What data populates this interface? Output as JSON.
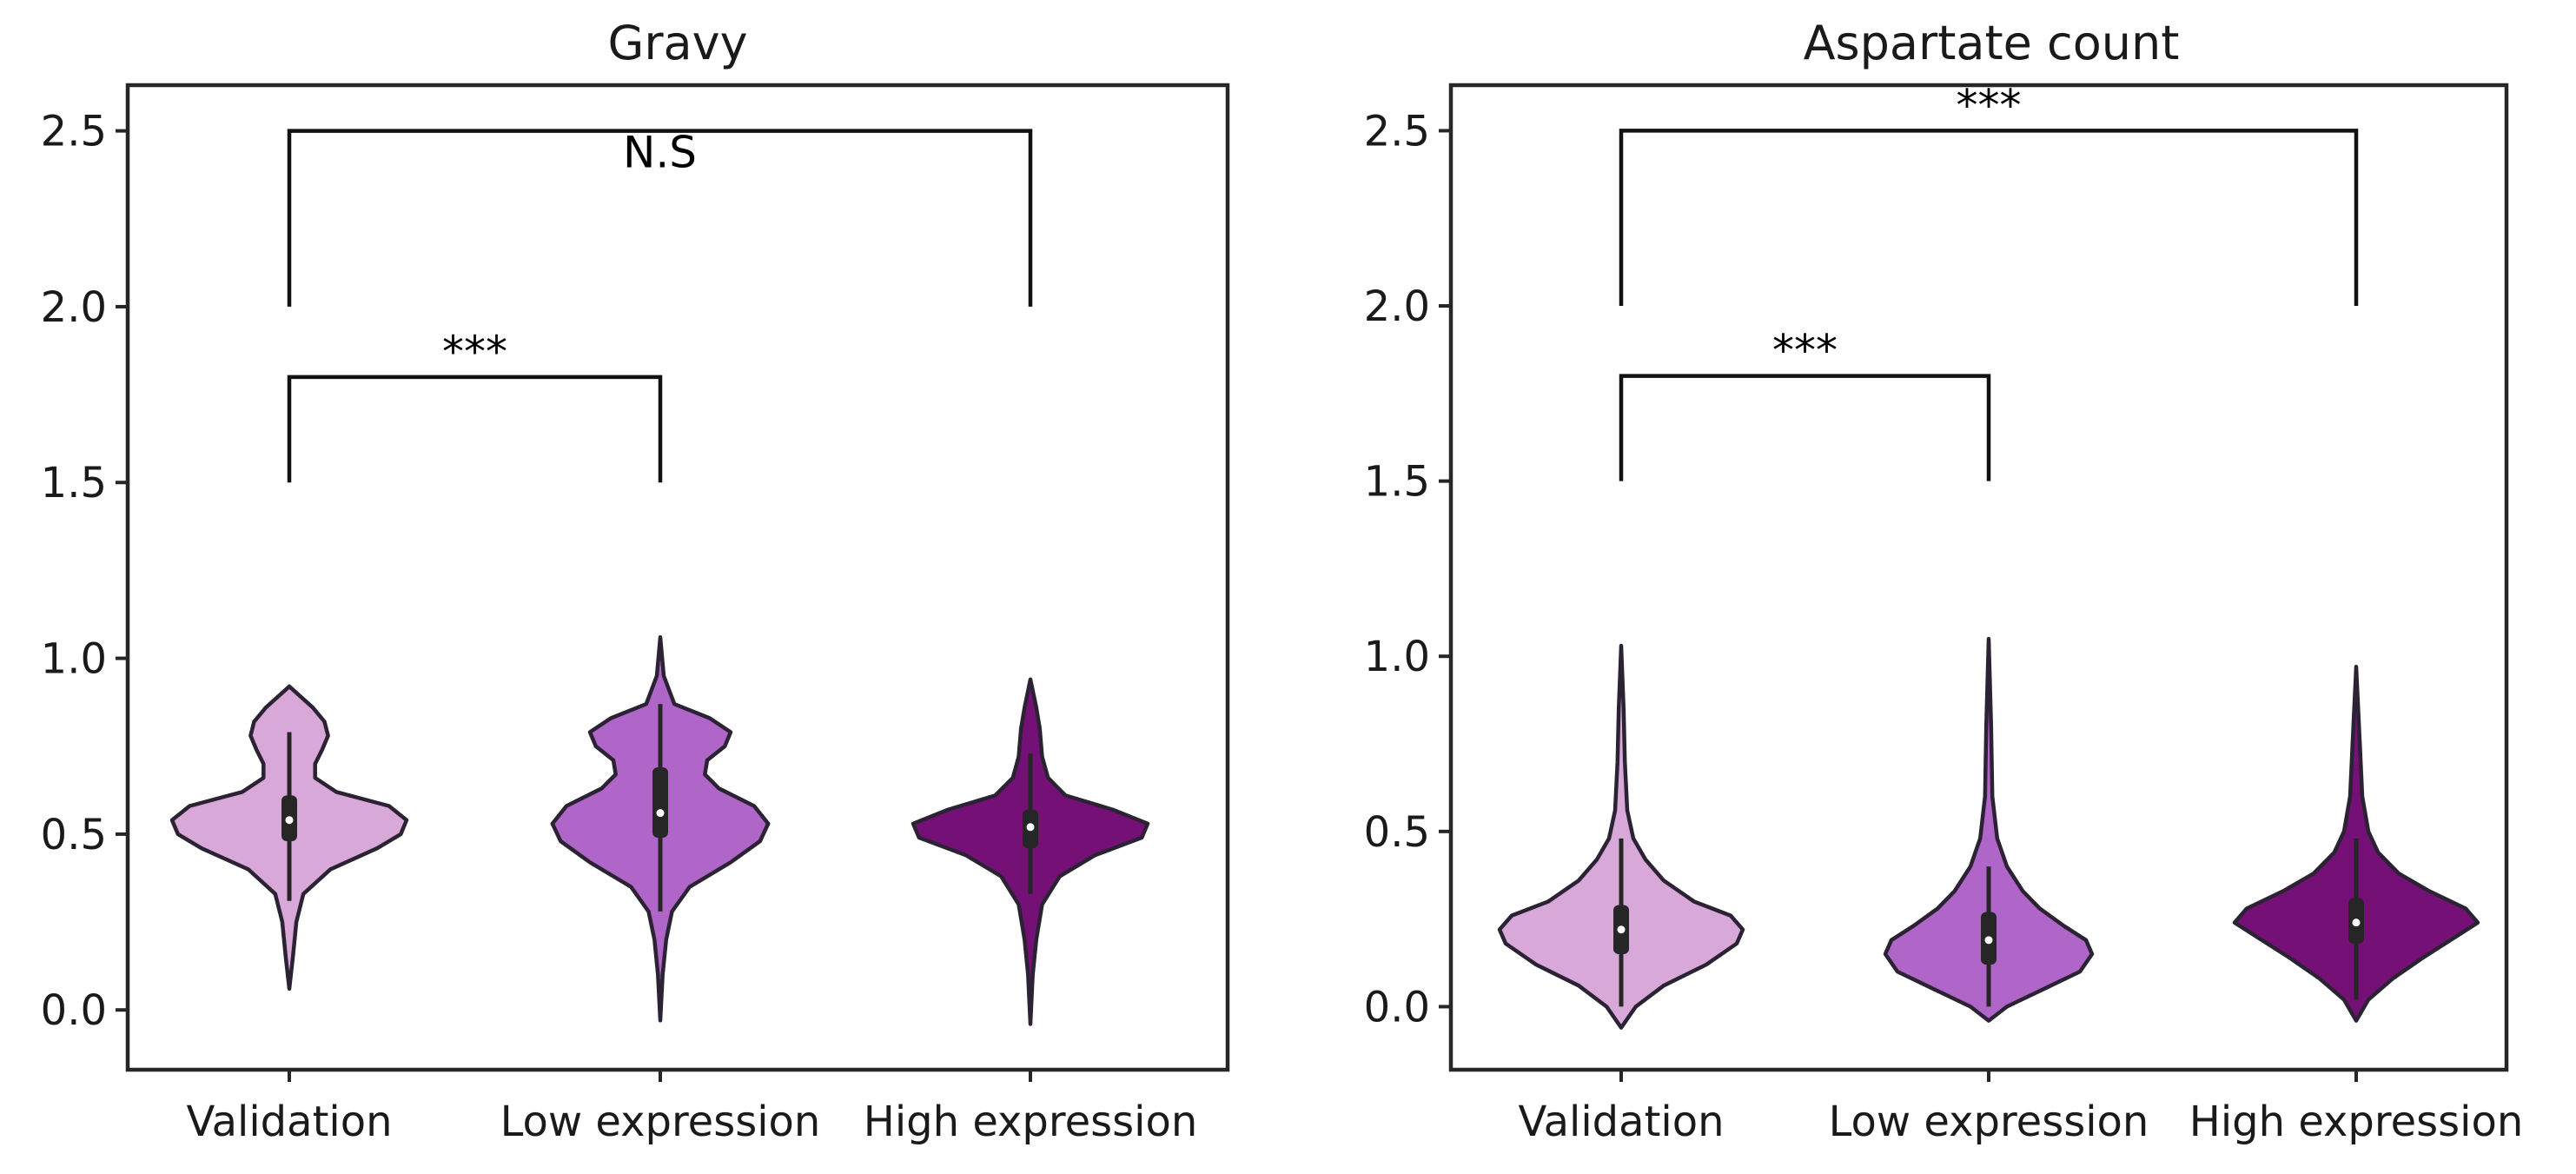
{
  "chart_data": [
    {
      "type": "violin",
      "title": "Gravy",
      "categories": [
        "Validation",
        "Low expression",
        "High expression"
      ],
      "colors": [
        "#d8a8d8",
        "#b066c8",
        "#751077"
      ],
      "ylim": [
        -0.17,
        2.63
      ],
      "yticks": [
        0.0,
        0.5,
        1.0,
        1.5,
        2.0,
        2.5
      ],
      "ytick_labels": [
        "0.0",
        "0.5",
        "1.0",
        "1.5",
        "2.0",
        "2.5"
      ],
      "violins": [
        {
          "min": 0.06,
          "max": 0.92,
          "q1": 0.48,
          "median": 0.54,
          "q3": 0.61,
          "whisker_low": 0.31,
          "whisker_high": 0.79,
          "profile": [
            [
              0.06,
              0.0
            ],
            [
              0.15,
              0.03
            ],
            [
              0.25,
              0.06
            ],
            [
              0.33,
              0.12
            ],
            [
              0.4,
              0.35
            ],
            [
              0.46,
              0.75
            ],
            [
              0.5,
              0.95
            ],
            [
              0.54,
              1.0
            ],
            [
              0.58,
              0.85
            ],
            [
              0.62,
              0.4
            ],
            [
              0.66,
              0.22
            ],
            [
              0.7,
              0.22
            ],
            [
              0.74,
              0.28
            ],
            [
              0.78,
              0.33
            ],
            [
              0.82,
              0.3
            ],
            [
              0.86,
              0.2
            ],
            [
              0.92,
              0.0
            ]
          ]
        },
        {
          "min": -0.03,
          "max": 1.06,
          "q1": 0.49,
          "median": 0.56,
          "q3": 0.69,
          "whisker_low": 0.28,
          "whisker_high": 0.87,
          "profile": [
            [
              -0.03,
              0.0
            ],
            [
              0.1,
              0.02
            ],
            [
              0.2,
              0.05
            ],
            [
              0.28,
              0.1
            ],
            [
              0.35,
              0.25
            ],
            [
              0.42,
              0.6
            ],
            [
              0.48,
              0.85
            ],
            [
              0.53,
              0.92
            ],
            [
              0.58,
              0.8
            ],
            [
              0.63,
              0.5
            ],
            [
              0.67,
              0.38
            ],
            [
              0.71,
              0.4
            ],
            [
              0.75,
              0.55
            ],
            [
              0.79,
              0.6
            ],
            [
              0.83,
              0.42
            ],
            [
              0.87,
              0.12
            ],
            [
              0.95,
              0.03
            ],
            [
              1.06,
              0.0
            ]
          ]
        },
        {
          "min": -0.04,
          "max": 0.94,
          "q1": 0.46,
          "median": 0.52,
          "q3": 0.57,
          "whisker_low": 0.33,
          "whisker_high": 0.73,
          "profile": [
            [
              -0.04,
              0.0
            ],
            [
              0.1,
              0.02
            ],
            [
              0.2,
              0.05
            ],
            [
              0.3,
              0.1
            ],
            [
              0.38,
              0.25
            ],
            [
              0.44,
              0.55
            ],
            [
              0.49,
              0.95
            ],
            [
              0.53,
              1.0
            ],
            [
              0.57,
              0.7
            ],
            [
              0.61,
              0.3
            ],
            [
              0.66,
              0.15
            ],
            [
              0.72,
              0.1
            ],
            [
              0.8,
              0.08
            ],
            [
              0.86,
              0.05
            ],
            [
              0.94,
              0.0
            ]
          ]
        }
      ],
      "annotations": [
        {
          "from": 0,
          "to": 1,
          "y": 1.8,
          "leg_bottom": 1.5,
          "label": "***"
        },
        {
          "from": 0,
          "to": 2,
          "y": 2.5,
          "leg_bottom": 2.0,
          "label": "N.S"
        }
      ]
    },
    {
      "type": "violin",
      "title": "Aspartate count",
      "categories": [
        "Validation",
        "Low expression",
        "High expression"
      ],
      "colors": [
        "#d8a8d8",
        "#b066c8",
        "#751077"
      ],
      "ylim": [
        -0.18,
        2.63
      ],
      "yticks": [
        0.0,
        0.5,
        1.0,
        1.5,
        2.0,
        2.5
      ],
      "ytick_labels": [
        "0.0",
        "0.5",
        "1.0",
        "1.5",
        "2.0",
        "2.5"
      ],
      "violins": [
        {
          "min": -0.06,
          "max": 1.03,
          "q1": 0.15,
          "median": 0.22,
          "q3": 0.29,
          "whisker_low": 0.0,
          "whisker_high": 0.48,
          "profile": [
            [
              -0.06,
              0.0
            ],
            [
              0.0,
              0.12
            ],
            [
              0.06,
              0.35
            ],
            [
              0.12,
              0.7
            ],
            [
              0.18,
              0.95
            ],
            [
              0.22,
              1.0
            ],
            [
              0.26,
              0.9
            ],
            [
              0.3,
              0.6
            ],
            [
              0.36,
              0.35
            ],
            [
              0.42,
              0.2
            ],
            [
              0.48,
              0.1
            ],
            [
              0.56,
              0.05
            ],
            [
              0.7,
              0.03
            ],
            [
              0.85,
              0.02
            ],
            [
              1.03,
              0.0
            ]
          ]
        },
        {
          "min": -0.04,
          "max": 1.05,
          "q1": 0.12,
          "median": 0.19,
          "q3": 0.27,
          "whisker_low": 0.0,
          "whisker_high": 0.4,
          "profile": [
            [
              -0.04,
              0.0
            ],
            [
              0.0,
              0.15
            ],
            [
              0.05,
              0.45
            ],
            [
              0.1,
              0.75
            ],
            [
              0.15,
              0.85
            ],
            [
              0.19,
              0.8
            ],
            [
              0.23,
              0.62
            ],
            [
              0.28,
              0.42
            ],
            [
              0.33,
              0.28
            ],
            [
              0.4,
              0.15
            ],
            [
              0.48,
              0.07
            ],
            [
              0.6,
              0.03
            ],
            [
              0.8,
              0.02
            ],
            [
              1.05,
              0.0
            ]
          ]
        },
        {
          "min": -0.04,
          "max": 0.97,
          "q1": 0.18,
          "median": 0.24,
          "q3": 0.31,
          "whisker_low": 0.02,
          "whisker_high": 0.48,
          "profile": [
            [
              -0.04,
              0.0
            ],
            [
              0.02,
              0.1
            ],
            [
              0.08,
              0.3
            ],
            [
              0.14,
              0.55
            ],
            [
              0.2,
              0.82
            ],
            [
              0.24,
              1.0
            ],
            [
              0.28,
              0.9
            ],
            [
              0.33,
              0.6
            ],
            [
              0.38,
              0.35
            ],
            [
              0.44,
              0.18
            ],
            [
              0.5,
              0.1
            ],
            [
              0.6,
              0.05
            ],
            [
              0.75,
              0.03
            ],
            [
              0.97,
              0.0
            ]
          ]
        }
      ],
      "annotations": [
        {
          "from": 0,
          "to": 1,
          "y": 1.8,
          "leg_bottom": 1.5,
          "label": "***"
        },
        {
          "from": 0,
          "to": 2,
          "y": 2.5,
          "leg_bottom": 2.0,
          "label": "***"
        }
      ]
    }
  ]
}
